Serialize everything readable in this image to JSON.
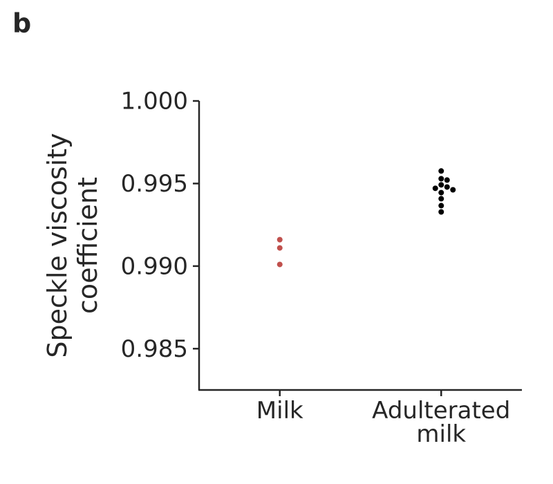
{
  "panel_label": "b",
  "chart_data": {
    "type": "strip",
    "y_label": "Speckle viscosity coefficient",
    "categories": [
      "Milk",
      "Adulterated milk"
    ],
    "colors": [
      "#c0504d",
      "#000000"
    ],
    "values": [
      [
        0.9916,
        0.9911,
        0.9901
      ],
      [
        0.99576,
        0.99529,
        0.99521,
        0.99492,
        0.99479,
        0.99471,
        0.99462,
        0.99445,
        0.99408,
        0.99366,
        0.99328
      ]
    ],
    "ylim": [
      0.9825,
      1.0
    ],
    "yticks": [
      {
        "value": 0.985,
        "label": "0.985"
      },
      {
        "value": 0.99,
        "label": "0.990"
      },
      {
        "value": 0.995,
        "label": "0.995"
      },
      {
        "value": 1.0,
        "label": "1.000"
      }
    ]
  }
}
